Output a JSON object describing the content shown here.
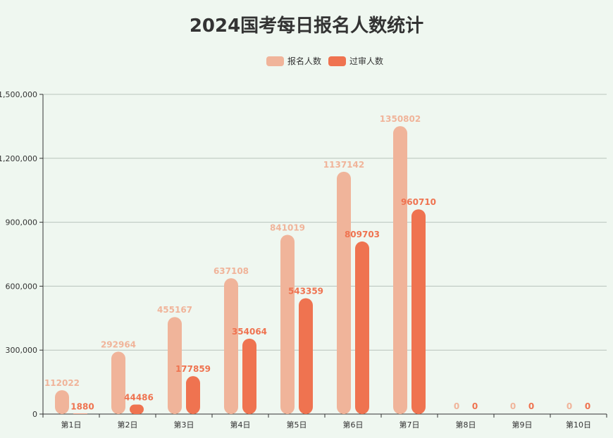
{
  "chart_data": {
    "type": "bar",
    "title": "2024国考每日报名人数统计",
    "categories": [
      "第1日",
      "第2日",
      "第3日",
      "第4日",
      "第5日",
      "第6日",
      "第7日",
      "第8日",
      "第9日",
      "第10日"
    ],
    "series": [
      {
        "name": "报名人数",
        "color": "#f0b49a",
        "values": [
          112022,
          292964,
          455167,
          637108,
          841019,
          1137142,
          1350802,
          0,
          0,
          0
        ]
      },
      {
        "name": "过审人数",
        "color": "#ef7350",
        "values": [
          1880,
          44486,
          177859,
          354064,
          543359,
          809703,
          960710,
          0,
          0,
          0
        ]
      }
    ],
    "yticks": [
      "0",
      "300,000",
      "600,000",
      "900,000",
      "1,200,000",
      "1,500,000"
    ],
    "ylim": [
      0,
      1500000
    ],
    "grid": true,
    "legend": "top"
  }
}
